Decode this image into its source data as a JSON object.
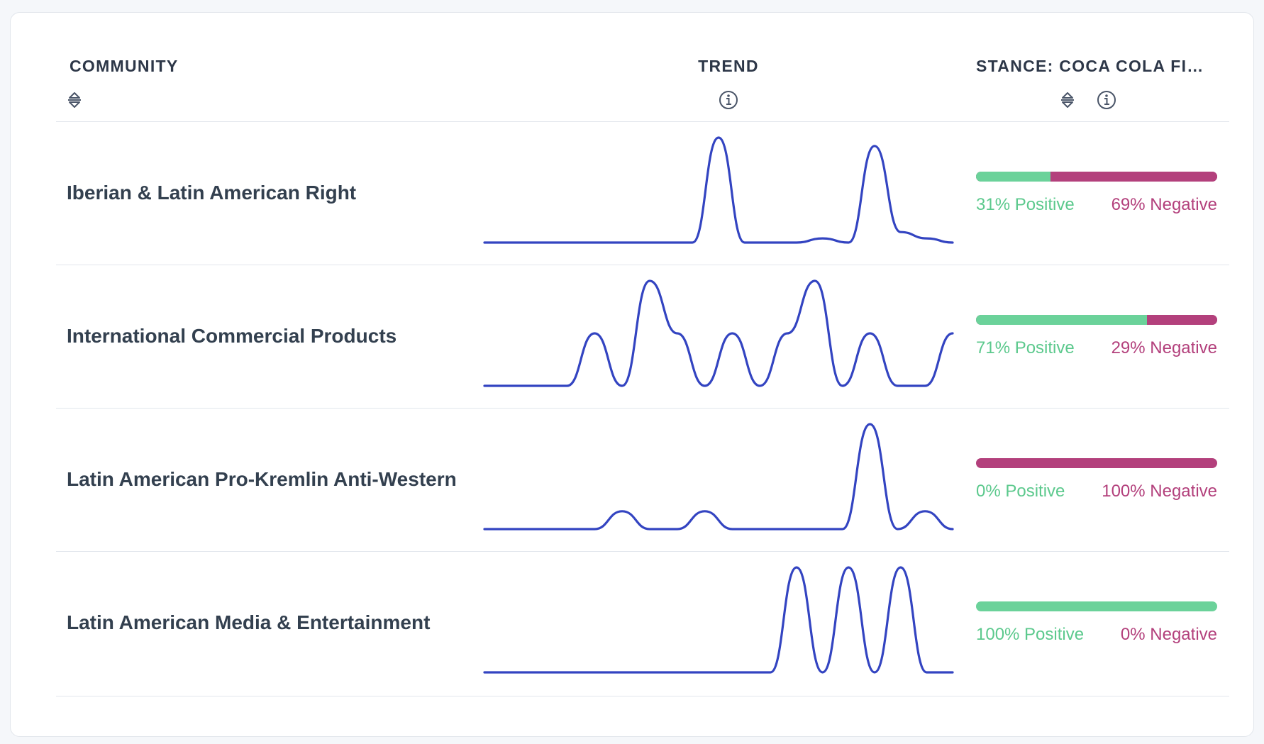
{
  "table": {
    "columns": {
      "community": "COMMUNITY",
      "trend": "TREND",
      "stance": "STANCE: COCA COLA FIF..."
    },
    "rows": [
      {
        "community": "Iberian & Latin American Right",
        "positive_pct": 31,
        "negative_pct": 69,
        "positive_label": "31% Positive",
        "negative_label": "69% Negative",
        "trend": [
          0,
          0,
          0,
          0,
          0,
          0,
          0,
          0,
          0,
          1.0,
          0,
          0,
          0,
          0.04,
          0,
          0.92,
          0.1,
          0.04,
          0
        ]
      },
      {
        "community": "International Commercial Products",
        "positive_pct": 71,
        "negative_pct": 29,
        "positive_label": "71% Positive",
        "negative_label": "29% Negative",
        "trend": [
          0,
          0,
          0,
          0,
          0.5,
          0,
          1.0,
          0.5,
          0,
          0.5,
          0,
          0.5,
          1.0,
          0,
          0.5,
          0,
          0,
          0.5
        ]
      },
      {
        "community": "Latin American Pro-Kremlin Anti-Western",
        "positive_pct": 0,
        "negative_pct": 100,
        "positive_label": "0% Positive",
        "negative_label": "100% Negative",
        "trend": [
          0,
          0,
          0,
          0,
          0,
          0.17,
          0,
          0,
          0.17,
          0,
          0,
          0,
          0,
          0,
          1.0,
          0,
          0.17,
          0
        ]
      },
      {
        "community": "Latin American Media & Entertainment",
        "positive_pct": 100,
        "negative_pct": 0,
        "positive_label": "100% Positive",
        "negative_label": "0% Negative",
        "trend": [
          0,
          0,
          0,
          0,
          0,
          0,
          0,
          0,
          0,
          0,
          0,
          0,
          1.0,
          0,
          1.0,
          0,
          1.0,
          0,
          0
        ]
      }
    ]
  },
  "icons": {
    "sort": "sort-icon",
    "info": "info-icon"
  },
  "colors": {
    "positive": "#6bd29a",
    "negative": "#b3407c",
    "trend_line": "#3344c1"
  }
}
